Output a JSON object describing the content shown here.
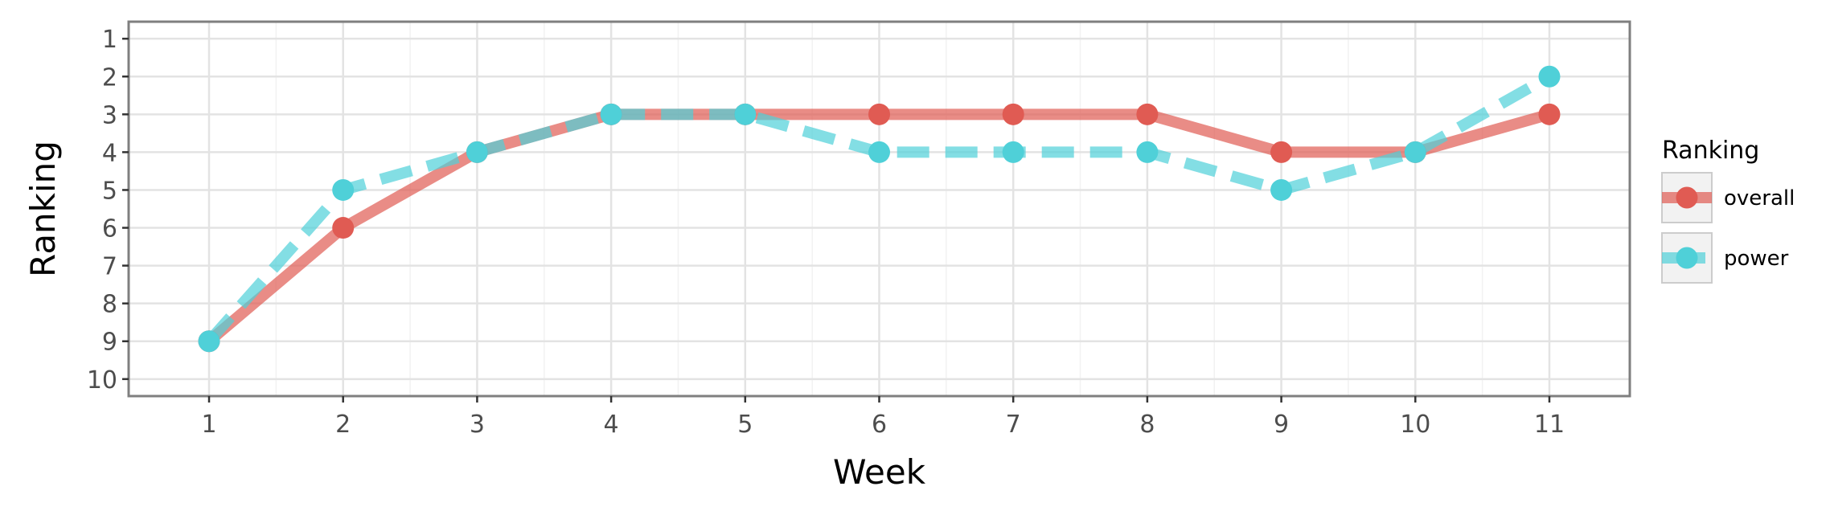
{
  "chart_data": {
    "type": "line",
    "title": "",
    "xlabel": "Week",
    "ylabel": "Ranking",
    "x": [
      1,
      2,
      3,
      4,
      5,
      6,
      7,
      8,
      9,
      10,
      11
    ],
    "xlim": [
      0.4,
      11.6
    ],
    "ylim": [
      10.45,
      0.55
    ],
    "y_reversed": true,
    "x_ticks": [
      "1",
      "2",
      "3",
      "4",
      "5",
      "6",
      "7",
      "8",
      "9",
      "10",
      "11"
    ],
    "y_ticks": [
      "1",
      "2",
      "3",
      "4",
      "5",
      "6",
      "7",
      "8",
      "9",
      "10"
    ],
    "grid": true,
    "legend": {
      "title": "Ranking",
      "position": "right"
    },
    "series": [
      {
        "name": "overall",
        "values": [
          9,
          6,
          4,
          3,
          3,
          3,
          3,
          3,
          4,
          4,
          3
        ],
        "color": "#e05b53",
        "line_style": "solid"
      },
      {
        "name": "power",
        "values": [
          9,
          5,
          4,
          3,
          3,
          4,
          4,
          4,
          5,
          4,
          2
        ],
        "color": "#4fd0d8",
        "line_style": "dashed"
      }
    ]
  }
}
